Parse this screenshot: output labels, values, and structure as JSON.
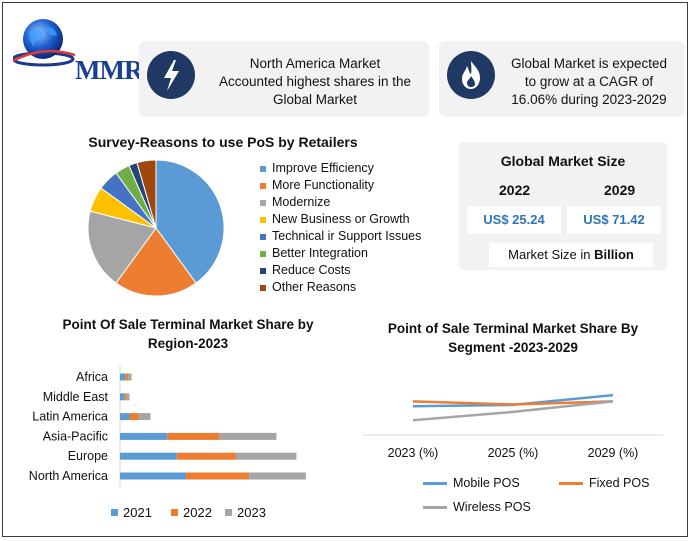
{
  "brand": {
    "logo_text": "MMR"
  },
  "highlights": [
    {
      "icon": "lightning-bolt-icon",
      "text_lines": [
        "North America Market",
        "Accounted highest shares in the",
        "Global Market"
      ]
    },
    {
      "icon": "flame-icon",
      "text_lines": [
        "Global Market is expected",
        "to grow at a CAGR of",
        "16.06% during 2023-2029"
      ]
    }
  ],
  "global_market_size": {
    "title": "Global Market Size",
    "years": [
      "2022",
      "2029"
    ],
    "values": [
      "US$ 25.24",
      "US$ 71.42"
    ],
    "unit_prefix": "Market Size in ",
    "unit_bold": "Billion"
  },
  "chart_data": [
    {
      "type": "pie",
      "title": "Survey-Reasons to use PoS by Retailers",
      "categories": [
        "Improve Efficiency",
        "More Functionality",
        "Modernize",
        "New Business or Growth",
        "Technical ir Support Issues",
        "Better Integration",
        "Reduce Costs",
        "Other Reasons"
      ],
      "values": [
        40,
        20,
        19,
        6,
        5,
        3.5,
        2,
        4.5
      ],
      "colors": [
        "#5b9bd5",
        "#ed7d31",
        "#a5a5a5",
        "#ffc000",
        "#4472c4",
        "#70ad47",
        "#264478",
        "#9e480e"
      ],
      "legend_position": "right"
    },
    {
      "type": "bar",
      "orientation": "horizontal",
      "stacked": true,
      "title_lines": [
        "Point Of Sale Terminal Market Share by",
        "Region-2023"
      ],
      "categories": [
        "Africa",
        "Middle East",
        "Latin America",
        "Asia-Pacific",
        "Europe",
        "North America"
      ],
      "series": [
        {
          "name": "2021",
          "color": "#5b9bd5",
          "values": [
            0.5,
            0.4,
            0.9,
            4.5,
            5.4,
            6.3
          ]
        },
        {
          "name": "2022",
          "color": "#ed7d31",
          "values": [
            0.3,
            0.2,
            0.9,
            5.0,
            5.6,
            6.0
          ]
        },
        {
          "name": "2023",
          "color": "#a5a5a5",
          "values": [
            0.3,
            0.3,
            1.1,
            5.4,
            5.8,
            5.4
          ]
        }
      ],
      "legend_position": "bottom",
      "grid": false
    },
    {
      "type": "line",
      "title_lines": [
        "Point of Sale Terminal Market Share By",
        "Segment -2023-2029"
      ],
      "categories": [
        "2023 (%)",
        "2025 (%)",
        "2029 (%)"
      ],
      "series": [
        {
          "name": "Mobile POS",
          "color": "#5b9bd5",
          "values": [
            35.5,
            36.5,
            43.5
          ]
        },
        {
          "name": "Fixed POS",
          "color": "#ed7d31",
          "values": [
            39,
            36.8,
            39
          ]
        },
        {
          "name": "Wireless POS",
          "color": "#a5a5a5",
          "values": [
            25.5,
            31.5,
            39
          ]
        }
      ],
      "ylim": [
        0,
        100
      ],
      "legend_position": "bottom",
      "grid": false
    }
  ]
}
